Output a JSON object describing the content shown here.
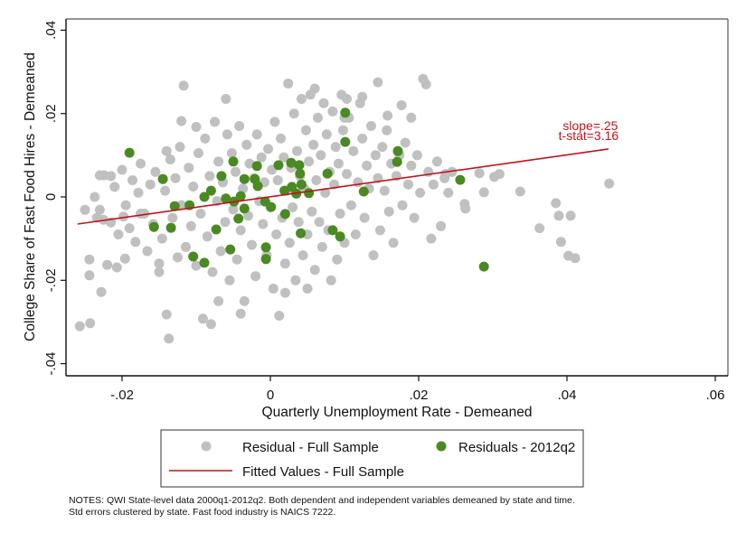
{
  "chart_data": {
    "type": "scatter",
    "xlabel": "Quarterly Unemployment Rate - Demeaned",
    "ylabel": "College Share of Fast Food Hires - Demeaned",
    "xlim": [
      -0.0275,
      0.0615
    ],
    "ylim": [
      -0.0428,
      0.0428
    ],
    "xticks": [
      -0.02,
      0,
      0.02,
      0.04,
      0.06
    ],
    "xtick_labels": [
      "-.02",
      "0",
      ".02",
      ".04",
      ".06"
    ],
    "yticks": [
      -0.04,
      -0.02,
      0,
      0.02,
      0.04
    ],
    "ytick_labels": [
      "-.04",
      "-.02",
      "0",
      ".02",
      ".04"
    ],
    "grid": false,
    "legend_position": "bottom",
    "colors": {
      "full": "#c0c0c0",
      "q2": "#4a8a22",
      "fit": "#c0141c"
    },
    "annotations": [
      "slope=.25",
      "t-stat=3.16"
    ],
    "series": [
      {
        "name": "Residual - Full Sample",
        "type": "scatter",
        "points": [
          [
            -0.0257,
            -0.031
          ],
          [
            -0.0243,
            -0.0303
          ],
          [
            -0.0228,
            -0.0228
          ],
          [
            -0.0244,
            -0.0188
          ],
          [
            -0.0244,
            -0.015
          ],
          [
            -0.022,
            -0.0163
          ],
          [
            -0.0207,
            -0.0169
          ],
          [
            -0.0196,
            -0.0148
          ],
          [
            -0.025,
            -0.0031
          ],
          [
            -0.0237,
            0.0
          ],
          [
            -0.023,
            -0.0031
          ],
          [
            -0.0234,
            -0.005
          ],
          [
            -0.0224,
            0.0052
          ],
          [
            -0.0215,
            -0.0061
          ],
          [
            -0.021,
            0.0024
          ],
          [
            -0.0205,
            -0.009
          ],
          [
            -0.02,
            0.0065
          ],
          [
            -0.0195,
            -0.002
          ],
          [
            -0.019,
            -0.0075
          ],
          [
            -0.0186,
            0.004
          ],
          [
            -0.0182,
            -0.0108
          ],
          [
            -0.0178,
            0.001
          ],
          [
            -0.0175,
            0.008
          ],
          [
            -0.017,
            -0.004
          ],
          [
            -0.0166,
            -0.013
          ],
          [
            -0.0162,
            0.003
          ],
          [
            -0.0158,
            -0.0065
          ],
          [
            -0.0155,
            0.006
          ],
          [
            -0.015,
            -0.018
          ],
          [
            -0.0146,
            -0.01
          ],
          [
            -0.0142,
            0.0015
          ],
          [
            -0.014,
            -0.0282
          ],
          [
            -0.0137,
            -0.034
          ],
          [
            -0.0135,
            0.009
          ],
          [
            -0.0132,
            -0.005
          ],
          [
            -0.0128,
            0.0045
          ],
          [
            -0.0125,
            -0.0145
          ],
          [
            -0.0122,
            0.012
          ],
          [
            -0.012,
            -0.002
          ],
          [
            -0.0117,
            0.0267
          ],
          [
            -0.0114,
            -0.012
          ],
          [
            -0.011,
            0.007
          ],
          [
            -0.0107,
            -0.007
          ],
          [
            -0.0104,
            0.0025
          ],
          [
            -0.01,
            -0.0165
          ],
          [
            -0.0097,
            0.0105
          ],
          [
            -0.0094,
            -0.004
          ],
          [
            -0.0091,
            -0.0292
          ],
          [
            -0.0088,
            0.014
          ],
          [
            -0.0085,
            -0.0095
          ],
          [
            -0.0082,
            0.005
          ],
          [
            -0.008,
            -0.0305
          ],
          [
            -0.0078,
            -0.018
          ],
          [
            -0.0075,
            0.018
          ],
          [
            -0.0072,
            -0.001
          ],
          [
            -0.007,
            0.0085
          ],
          [
            -0.0067,
            -0.013
          ],
          [
            -0.0064,
            0.0035
          ],
          [
            -0.0061,
            -0.006
          ],
          [
            -0.0058,
            0.015
          ],
          [
            -0.0055,
            -0.02
          ],
          [
            -0.0052,
            0.0105
          ],
          [
            -0.005,
            -0.003
          ],
          [
            -0.0047,
            0.006
          ],
          [
            -0.0045,
            -0.015
          ],
          [
            -0.0042,
            0.017
          ],
          [
            -0.004,
            -0.008
          ],
          [
            -0.0037,
            0.002
          ],
          [
            -0.0035,
            -0.025
          ],
          [
            -0.0032,
            0.0125
          ],
          [
            -0.003,
            -0.0045
          ],
          [
            -0.0028,
            0.008
          ],
          [
            -0.0025,
            -0.0115
          ],
          [
            -0.0022,
            0.0045
          ],
          [
            -0.002,
            -0.019
          ],
          [
            -0.0018,
            0.015
          ],
          [
            -0.0015,
            -0.001
          ],
          [
            -0.0012,
            0.0095
          ],
          [
            -0.001,
            -0.0065
          ],
          [
            -0.0008,
            0.0035
          ],
          [
            -0.0005,
            -0.014
          ],
          [
            -0.0003,
            0.0115
          ],
          [
            0.0,
            -0.0025
          ],
          [
            0.0002,
            0.0065
          ],
          [
            0.0004,
            -0.022
          ],
          [
            0.0006,
            0.018
          ],
          [
            0.0008,
            -0.009
          ],
          [
            0.001,
            0.004
          ],
          [
            0.0012,
            -0.0285
          ],
          [
            0.0014,
            0.014
          ],
          [
            0.0016,
            -0.005
          ],
          [
            0.0018,
            0.0095
          ],
          [
            0.002,
            -0.016
          ],
          [
            0.0022,
            0.0015
          ],
          [
            0.0024,
            0.0272
          ],
          [
            0.0026,
            -0.011
          ],
          [
            0.0028,
            0.007
          ],
          [
            0.003,
            -0.0025
          ],
          [
            0.0032,
            0.02
          ],
          [
            0.0034,
            -0.02
          ],
          [
            0.0036,
            0.011
          ],
          [
            0.0038,
            -0.006
          ],
          [
            0.004,
            0.005
          ],
          [
            0.0042,
            0.0235
          ],
          [
            0.0044,
            -0.014
          ],
          [
            0.0046,
            0.002
          ],
          [
            0.0048,
            0.016
          ],
          [
            0.005,
            -0.009
          ],
          [
            0.0052,
            0.0085
          ],
          [
            0.0054,
            0.0245
          ],
          [
            0.0056,
            -0.0035
          ],
          [
            0.0058,
            0.0125
          ],
          [
            0.006,
            -0.0175
          ],
          [
            0.0062,
            0.004
          ],
          [
            0.0064,
            0.019
          ],
          [
            0.0066,
            -0.006
          ],
          [
            0.0068,
            0.01
          ],
          [
            0.007,
            -0.012
          ],
          [
            0.0072,
            0.0225
          ],
          [
            0.0074,
            0.001
          ],
          [
            0.0076,
            0.015
          ],
          [
            0.0078,
            -0.008
          ],
          [
            0.008,
            0.006
          ],
          [
            0.0082,
            -0.02
          ],
          [
            0.0084,
            0.0205
          ],
          [
            0.0086,
            0.003
          ],
          [
            0.0088,
            0.012
          ],
          [
            0.009,
            -0.015
          ],
          [
            0.0092,
            0.008
          ],
          [
            0.0094,
            -0.004
          ],
          [
            0.0096,
            0.0245
          ],
          [
            0.0098,
            0.016
          ],
          [
            0.01,
            -0.011
          ],
          [
            0.0103,
            0.0055
          ],
          [
            0.0106,
            0.019
          ],
          [
            0.0109,
            -0.002
          ],
          [
            0.0112,
            0.011
          ],
          [
            0.0115,
            -0.009
          ],
          [
            0.0118,
            0.0035
          ],
          [
            0.0121,
            0.0225
          ],
          [
            0.0124,
            0.014
          ],
          [
            0.0127,
            -0.005
          ],
          [
            0.013,
            0.0075
          ],
          [
            0.0133,
            0.002
          ],
          [
            0.0136,
            0.017
          ],
          [
            0.0139,
            -0.014
          ],
          [
            0.0142,
            0.01
          ],
          [
            0.0145,
            0.0045
          ],
          [
            0.0148,
            -0.008
          ],
          [
            0.0151,
            0.012
          ],
          [
            0.0154,
            0.0015
          ],
          [
            0.0157,
            0.016
          ],
          [
            0.016,
            -0.0035
          ],
          [
            0.0163,
            0.008
          ],
          [
            0.0166,
            -0.011
          ],
          [
            0.017,
            0.005
          ],
          [
            0.0174,
            0.01
          ],
          [
            0.0178,
            -0.002
          ],
          [
            0.0182,
            0.013
          ],
          [
            0.0186,
            0.003
          ],
          [
            0.019,
            0.0075
          ],
          [
            0.0194,
            -0.005
          ],
          [
            0.0198,
            0.01
          ],
          [
            0.0202,
            0.001
          ],
          [
            0.0206,
            0.0283
          ],
          [
            0.021,
            0.027
          ],
          [
            0.0213,
            0.006
          ],
          [
            0.0217,
            -0.01
          ],
          [
            0.022,
            0.003
          ],
          [
            0.0225,
            0.0085
          ],
          [
            0.023,
            -0.007
          ],
          [
            0.0235,
            0.0045
          ],
          [
            0.024,
            0.001
          ],
          [
            0.0245,
            0.006
          ],
          [
            0.019,
            0.019
          ],
          [
            0.0177,
            0.022
          ],
          [
            0.0158,
            0.0195
          ],
          [
            0.0145,
            0.0275
          ],
          [
            0.0124,
            0.024
          ],
          [
            0.0103,
            0.0235
          ],
          [
            0.0236,
            0.0055
          ],
          [
            0.0263,
            -0.0028
          ],
          [
            0.0282,
            0.0057
          ],
          [
            0.0302,
            0.0048
          ],
          [
            0.0309,
            0.0055
          ],
          [
            0.0288,
            0.0011
          ],
          [
            0.0337,
            0.0013
          ],
          [
            0.0363,
            -0.0075
          ],
          [
            0.0392,
            -0.0108
          ],
          [
            0.0411,
            -0.0147
          ],
          [
            0.0402,
            -0.0141
          ],
          [
            0.0385,
            -0.0015
          ],
          [
            0.0389,
            -0.0045
          ],
          [
            0.0405,
            -0.0045
          ],
          [
            0.0457,
            0.0032
          ],
          [
            0.0262,
            -0.0017
          ],
          [
            -0.0225,
            -0.0055
          ],
          [
            -0.0215,
            0.005
          ],
          [
            -0.023,
            0.0052
          ],
          [
            -0.0198,
            -0.0047
          ],
          [
            -0.0175,
            -0.004
          ],
          [
            -0.015,
            -0.016
          ],
          [
            -0.004,
            -0.028
          ],
          [
            -0.007,
            -0.025
          ],
          [
            0.002,
            -0.023
          ],
          [
            0.005,
            -0.022
          ],
          [
            -0.012,
            0.0182
          ],
          [
            -0.01,
            0.0168
          ],
          [
            -0.006,
            0.0235
          ],
          [
            0.006,
            0.026
          ],
          [
            0.01,
            0.019
          ],
          [
            -0.014,
            0.011
          ]
        ]
      },
      {
        "name": "Residuals - 2012q2",
        "type": "scatter",
        "points": [
          [
            -0.019,
            0.0106
          ],
          [
            -0.0145,
            0.0043
          ],
          [
            -0.0157,
            -0.0072
          ],
          [
            -0.0134,
            -0.0074
          ],
          [
            -0.0129,
            -0.0022
          ],
          [
            -0.0109,
            -0.002
          ],
          [
            -0.0104,
            -0.0143
          ],
          [
            -0.0089,
            -0.0158
          ],
          [
            -0.0089,
            0.0
          ],
          [
            -0.008,
            0.0015
          ],
          [
            -0.0073,
            -0.0078
          ],
          [
            -0.0066,
            0.005
          ],
          [
            -0.006,
            -0.0004
          ],
          [
            -0.0054,
            -0.0126
          ],
          [
            -0.005,
            0.0085
          ],
          [
            -0.0049,
            -0.0011
          ],
          [
            -0.0043,
            -0.0052
          ],
          [
            -0.004,
            0.0002
          ],
          [
            -0.0035,
            0.0043
          ],
          [
            -0.0035,
            -0.0028
          ],
          [
            -0.0021,
            0.0043
          ],
          [
            -0.0018,
            0.0074
          ],
          [
            -0.0017,
            0.0026
          ],
          [
            -0.0007,
            -0.0011
          ],
          [
            -0.0006,
            -0.0121
          ],
          [
            -0.0006,
            -0.0149
          ],
          [
            0.0001,
            -0.0024
          ],
          [
            0.0011,
            0.0076
          ],
          [
            0.002,
            -0.0041
          ],
          [
            0.0028,
            0.0082
          ],
          [
            0.0029,
            0.0024
          ],
          [
            0.0035,
            0.0008
          ],
          [
            0.0039,
            0.0076
          ],
          [
            0.004,
            0.0056
          ],
          [
            0.0042,
            0.003
          ],
          [
            0.0041,
            -0.0087
          ],
          [
            0.0052,
            0.0009
          ],
          [
            0.0077,
            0.0056
          ],
          [
            0.0084,
            -0.008
          ],
          [
            0.0094,
            -0.0095
          ],
          [
            0.0101,
            0.0202
          ],
          [
            0.0101,
            0.0132
          ],
          [
            0.0126,
            0.0013
          ],
          [
            0.0172,
            0.011
          ],
          [
            0.0171,
            0.0084
          ],
          [
            0.0256,
            0.0041
          ],
          [
            0.0288,
            -0.0167
          ],
          [
            0.0019,
            0.0015
          ]
        ]
      },
      {
        "name": "Fitted Values - Full Sample",
        "type": "line",
        "x": [
          -0.026,
          0.0456
        ],
        "y": [
          -0.0065,
          0.0115
        ]
      }
    ]
  },
  "legend": {
    "items": [
      "Residual - Full Sample",
      "Residuals - 2012q2",
      "Fitted Values - Full Sample"
    ]
  },
  "notes": {
    "line1": "NOTES: QWI State-level data 2000q1-2012q2. Both dependent and independent variables demeaned by state and time.",
    "line2": "Std errors clustered by state. Fast food industry is NAICS 7222."
  }
}
